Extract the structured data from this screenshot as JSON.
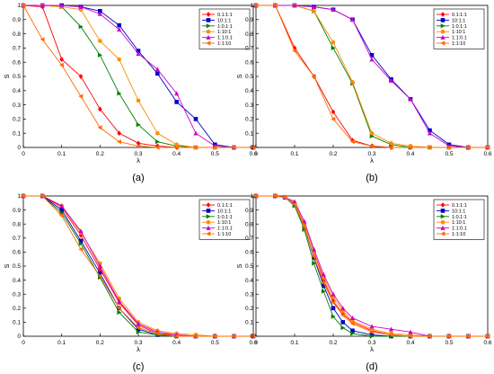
{
  "chart_data": [
    {
      "panel_label": "(a)",
      "type": "line",
      "xlabel": "λ",
      "ylabel": "S",
      "xlim": [
        0,
        0.6
      ],
      "ylim": [
        0,
        1
      ],
      "xticks": [
        "0",
        "0.1",
        "0.2",
        "0.3",
        "0.4",
        "0.5",
        "0.6"
      ],
      "yticks": [
        "0",
        "0.1",
        "0.2",
        "0.3",
        "0.4",
        "0.5",
        "0.6",
        "0.7",
        "0.8",
        "0.9",
        "1"
      ],
      "grid": false,
      "legend": "top-right",
      "x": [
        0,
        0.05,
        0.1,
        0.15,
        0.2,
        0.25,
        0.3,
        0.35,
        0.4,
        0.45,
        0.5,
        0.55,
        0.6
      ],
      "series": [
        {
          "name": "0.1:1:1",
          "color": "#ff0000",
          "marker": "diamond",
          "values": [
            1,
            0.99,
            0.62,
            0.5,
            0.27,
            0.1,
            0.03,
            0.01,
            0,
            0,
            0,
            0,
            0
          ]
        },
        {
          "name": "10:1:1",
          "color": "#0000cc",
          "marker": "square",
          "values": [
            1,
            1,
            1,
            0.99,
            0.96,
            0.86,
            0.68,
            0.52,
            0.32,
            0.2,
            0.02,
            0,
            0
          ]
        },
        {
          "name": "1:0.1:1",
          "color": "#008000",
          "marker": "triangle-right",
          "values": [
            1,
            1,
            0.99,
            0.85,
            0.65,
            0.38,
            0.16,
            0.04,
            0.01,
            0,
            0,
            0,
            0
          ]
        },
        {
          "name": "1:10:1",
          "color": "#ff8c00",
          "marker": "circle",
          "values": [
            1,
            1,
            0.99,
            0.97,
            0.75,
            0.62,
            0.33,
            0.1,
            0.02,
            0,
            0,
            0,
            0
          ]
        },
        {
          "name": "1:1:0.1",
          "color": "#cc00cc",
          "marker": "triangle-up",
          "values": [
            1,
            1,
            1,
            0.99,
            0.94,
            0.83,
            0.66,
            0.55,
            0.38,
            0.1,
            0.01,
            0,
            0
          ]
        },
        {
          "name": "1:1:10",
          "color": "#ff6a00",
          "marker": "triangle-left",
          "values": [
            1,
            0.76,
            0.58,
            0.36,
            0.14,
            0.04,
            0.01,
            0,
            0,
            0,
            0,
            0,
            0
          ]
        }
      ]
    },
    {
      "panel_label": "(b)",
      "type": "line",
      "xlabel": "λ",
      "ylabel": "S",
      "xlim": [
        0,
        0.6
      ],
      "ylim": [
        0,
        1
      ],
      "xticks": [
        "0",
        "0.1",
        "0.2",
        "0.3",
        "0.4",
        "0.5",
        "0.6"
      ],
      "yticks": [
        "0",
        "0.1",
        "0.2",
        "0.3",
        "0.4",
        "0.5",
        "0.6",
        "0.7",
        "0.8",
        "0.9",
        "1"
      ],
      "grid": false,
      "legend": "top-right",
      "x": [
        0,
        0.05,
        0.1,
        0.15,
        0.2,
        0.25,
        0.3,
        0.35,
        0.4,
        0.45,
        0.5,
        0.55,
        0.6
      ],
      "series": [
        {
          "name": "0.1:1:1",
          "color": "#ff0000",
          "marker": "diamond",
          "values": [
            1,
            1,
            0.7,
            0.5,
            0.25,
            0.05,
            0.01,
            0,
            0,
            0,
            0,
            0,
            0
          ]
        },
        {
          "name": "10:1:1",
          "color": "#0000cc",
          "marker": "square",
          "values": [
            1,
            1,
            1,
            0.99,
            0.97,
            0.9,
            0.65,
            0.48,
            0.34,
            0.12,
            0.02,
            0,
            0
          ]
        },
        {
          "name": "1:0.1:1",
          "color": "#008000",
          "marker": "triangle-right",
          "values": [
            1,
            1,
            1,
            0.96,
            0.7,
            0.45,
            0.08,
            0.02,
            0,
            0,
            0,
            0,
            0
          ]
        },
        {
          "name": "1:10:1",
          "color": "#ff8c00",
          "marker": "circle",
          "values": [
            1,
            1,
            1,
            0.96,
            0.74,
            0.46,
            0.1,
            0.03,
            0.01,
            0,
            0,
            0,
            0
          ]
        },
        {
          "name": "1:1:0.1",
          "color": "#cc00cc",
          "marker": "triangle-up",
          "values": [
            1,
            1,
            1,
            0.99,
            0.97,
            0.9,
            0.62,
            0.47,
            0.34,
            0.1,
            0.01,
            0,
            0
          ]
        },
        {
          "name": "1:1:10",
          "color": "#ff6a00",
          "marker": "triangle-left",
          "values": [
            1,
            1,
            0.68,
            0.5,
            0.2,
            0.04,
            0.01,
            0,
            0,
            0,
            0,
            0,
            0
          ]
        }
      ]
    },
    {
      "panel_label": "(c)",
      "type": "line",
      "xlabel": "λ",
      "ylabel": "S",
      "xlim": [
        0,
        0.6
      ],
      "ylim": [
        0,
        1
      ],
      "xticks": [
        "0",
        "0.1",
        "0.2",
        "0.3",
        "0.4",
        "0.5",
        "0.6"
      ],
      "yticks": [
        "0",
        "0.1",
        "0.2",
        "0.3",
        "0.4",
        "0.5",
        "0.6",
        "0.7",
        "0.8",
        "0.9",
        "1"
      ],
      "grid": false,
      "legend": "top-right",
      "x": [
        0,
        0.05,
        0.1,
        0.15,
        0.2,
        0.25,
        0.3,
        0.35,
        0.4,
        0.45,
        0.5,
        0.55,
        0.6
      ],
      "series": [
        {
          "name": "0.1:1:1",
          "color": "#ff0000",
          "marker": "diamond",
          "values": [
            1,
            1,
            0.92,
            0.72,
            0.48,
            0.24,
            0.08,
            0.02,
            0.01,
            0,
            0,
            0,
            0
          ]
        },
        {
          "name": "10:1:1",
          "color": "#0000cc",
          "marker": "square",
          "values": [
            1,
            1,
            0.9,
            0.68,
            0.45,
            0.2,
            0.05,
            0.01,
            0,
            0,
            0,
            0,
            0
          ]
        },
        {
          "name": "1:0.1:1",
          "color": "#008000",
          "marker": "triangle-right",
          "values": [
            1,
            1,
            0.88,
            0.66,
            0.42,
            0.17,
            0.03,
            0.01,
            0,
            0,
            0,
            0,
            0
          ]
        },
        {
          "name": "1:10:1",
          "color": "#ff8c00",
          "marker": "circle",
          "values": [
            1,
            1,
            0.93,
            0.74,
            0.52,
            0.27,
            0.1,
            0.04,
            0.02,
            0.01,
            0,
            0,
            0
          ]
        },
        {
          "name": "1:1:0.1",
          "color": "#cc00cc",
          "marker": "triangle-up",
          "values": [
            1,
            1,
            0.93,
            0.75,
            0.5,
            0.25,
            0.09,
            0.03,
            0.01,
            0,
            0,
            0,
            0
          ]
        },
        {
          "name": "1:1:10",
          "color": "#ff6a00",
          "marker": "triangle-left",
          "values": [
            1,
            1,
            0.86,
            0.62,
            0.43,
            0.2,
            0.06,
            0.02,
            0,
            0,
            0,
            0,
            0
          ]
        }
      ]
    },
    {
      "panel_label": "(d)",
      "type": "line",
      "xlabel": "λ",
      "ylabel": "S",
      "xlim": [
        0,
        0.6
      ],
      "ylim": [
        0,
        1
      ],
      "xticks": [
        "0",
        "0.1",
        "0.2",
        "0.3",
        "0.4",
        "0.5",
        "0.6"
      ],
      "yticks": [
        "0",
        "0.1",
        "0.2",
        "0.3",
        "0.4",
        "0.5",
        "0.6",
        "0.7",
        "0.8",
        "0.9",
        "1"
      ],
      "grid": false,
      "legend": "top-right",
      "x": [
        0,
        0.05,
        0.075,
        0.1,
        0.125,
        0.15,
        0.175,
        0.2,
        0.225,
        0.25,
        0.3,
        0.35,
        0.4,
        0.45,
        0.5,
        0.55,
        0.6
      ],
      "series": [
        {
          "name": "0.1:1:1",
          "color": "#ff0000",
          "marker": "diamond",
          "values": [
            1,
            1,
            0.99,
            0.95,
            0.8,
            0.6,
            0.4,
            0.25,
            0.16,
            0.1,
            0.04,
            0.01,
            0,
            0,
            0,
            0,
            0
          ]
        },
        {
          "name": "10:1:1",
          "color": "#0000cc",
          "marker": "square",
          "values": [
            1,
            1,
            0.99,
            0.94,
            0.78,
            0.56,
            0.36,
            0.2,
            0.1,
            0.04,
            0.01,
            0,
            0,
            0,
            0,
            0,
            0
          ]
        },
        {
          "name": "1:0.1:1",
          "color": "#008000",
          "marker": "triangle-right",
          "values": [
            1,
            1,
            0.99,
            0.93,
            0.76,
            0.52,
            0.32,
            0.14,
            0.06,
            0.02,
            0,
            0,
            0,
            0,
            0,
            0,
            0
          ]
        },
        {
          "name": "1:10:1",
          "color": "#ff8c00",
          "marker": "circle",
          "values": [
            1,
            1,
            0.99,
            0.95,
            0.8,
            0.6,
            0.42,
            0.28,
            0.18,
            0.11,
            0.05,
            0.02,
            0.01,
            0,
            0,
            0,
            0
          ]
        },
        {
          "name": "1:1:0.1",
          "color": "#cc00cc",
          "marker": "triangle-up",
          "values": [
            1,
            1,
            0.99,
            0.96,
            0.82,
            0.62,
            0.44,
            0.3,
            0.2,
            0.13,
            0.07,
            0.05,
            0.03,
            0,
            0,
            0,
            0
          ]
        },
        {
          "name": "1:1:10",
          "color": "#ff6a00",
          "marker": "triangle-left",
          "values": [
            1,
            1,
            0.99,
            0.94,
            0.78,
            0.57,
            0.38,
            0.24,
            0.15,
            0.09,
            0.03,
            0.01,
            0,
            0,
            0,
            0,
            0
          ]
        }
      ]
    }
  ]
}
